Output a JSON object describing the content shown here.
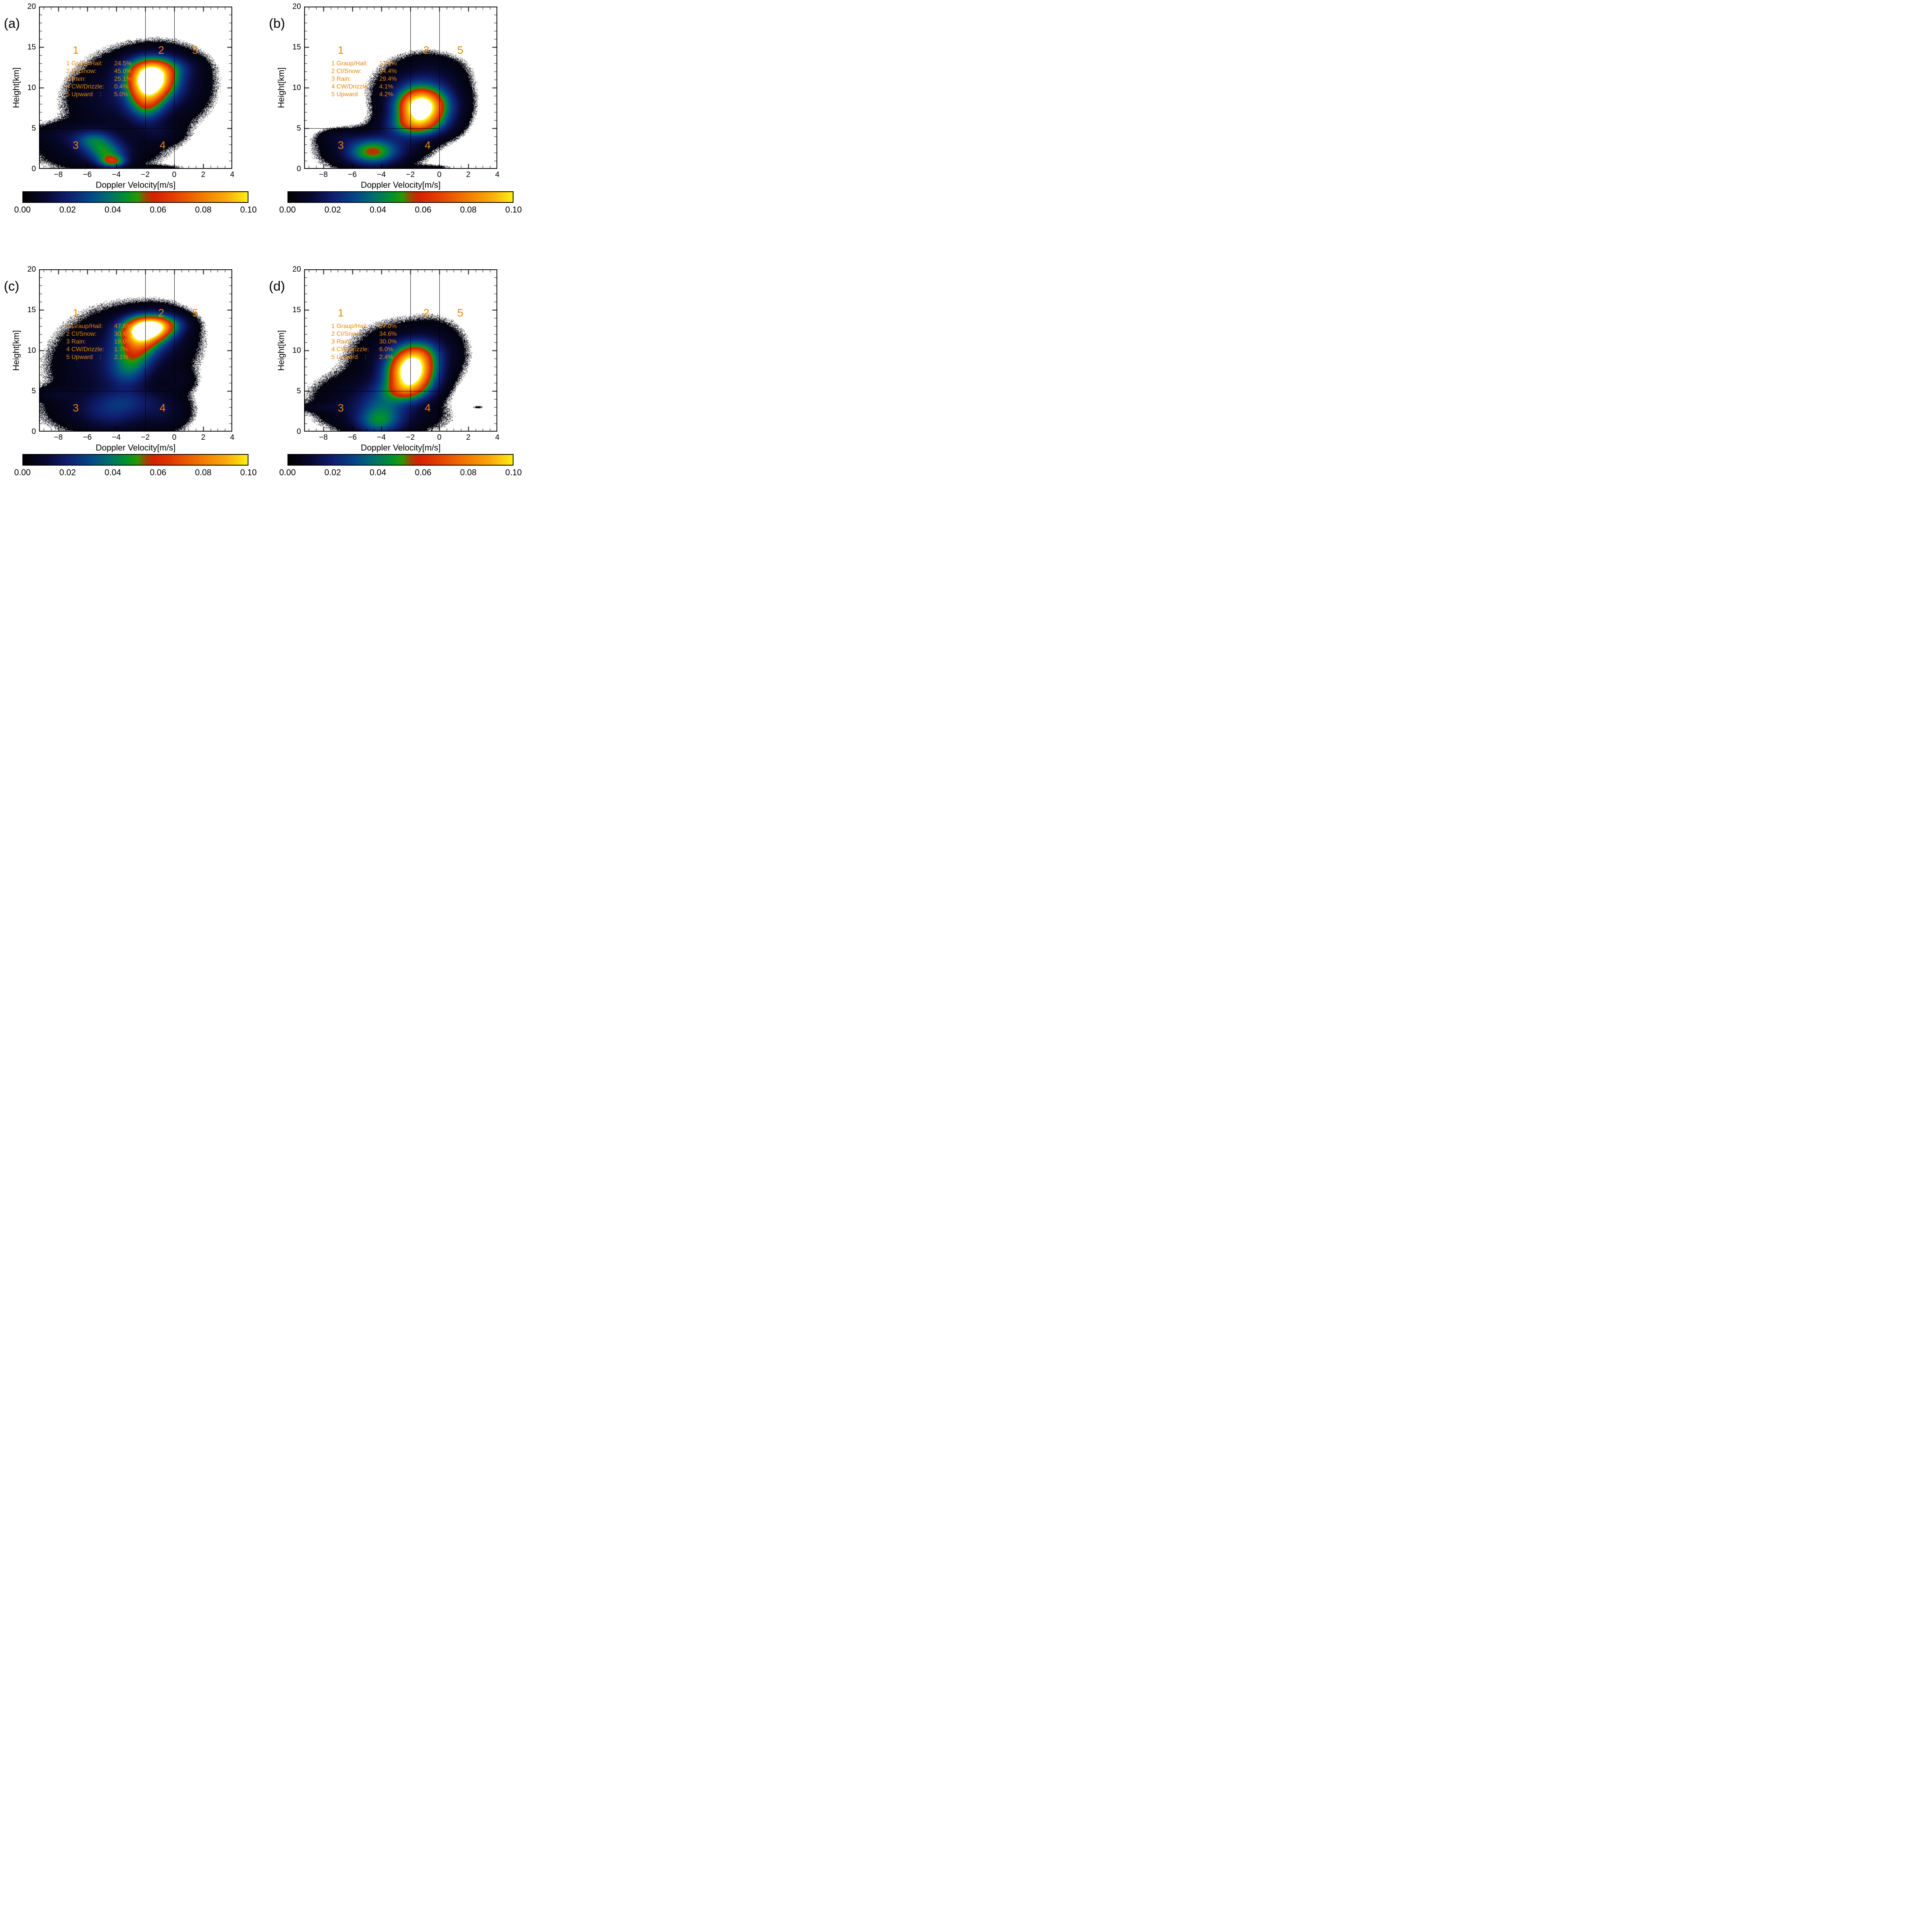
{
  "page": {
    "background": "#ffffff",
    "annotation_color": "#E8860D",
    "axis_color": "#000000"
  },
  "chart_data": [
    {
      "type": "heatmap",
      "panel_label": "(a)",
      "xlabel": "Doppler Velocity[m/s]",
      "ylabel": "Height[km]",
      "xlim": [
        -9.33,
        4
      ],
      "ylim": [
        0,
        20
      ],
      "xtick_values": [
        -8,
        -6,
        -4,
        -2,
        0,
        2,
        4
      ],
      "xtick_labels": [
        "−8",
        "−6",
        "−4",
        "−2",
        "0",
        "2",
        "4"
      ],
      "ytick_values": [
        0,
        5,
        10,
        15,
        20
      ],
      "ytick_labels": [
        "0",
        "5",
        "10",
        "15",
        "20"
      ],
      "colorbar": {
        "min": 0.0,
        "max": 0.1,
        "tick_labels": [
          "0.00",
          "0.02",
          "0.04",
          "0.06",
          "0.08",
          "0.10"
        ]
      },
      "reference_lines": {
        "vertical_x": [
          -2,
          0
        ],
        "horizontal_y": 5,
        "horizontal_x_range": [
          -9.33,
          0
        ]
      },
      "region_labels": [
        {
          "text": "1",
          "x": -6.8,
          "y": 14.6
        },
        {
          "text": "2",
          "x": -0.9,
          "y": 14.6
        },
        {
          "text": "5",
          "x": 1.45,
          "y": 14.6
        },
        {
          "text": "3",
          "x": -6.8,
          "y": 2.9
        },
        {
          "text": "4",
          "x": -0.8,
          "y": 2.9
        }
      ],
      "legend_pos": {
        "x": -7.45,
        "y": 13.45
      },
      "legend": [
        {
          "label": "1 Graup/Hail:",
          "value": "24.5%"
        },
        {
          "label": "2 CI/Snow:",
          "value": "45.0%"
        },
        {
          "label": "3 Rain:",
          "value": "25.1%"
        },
        {
          "label": "4 CW/Drizzle:",
          "value": "0.4%"
        },
        {
          "label": "5 Upward    :",
          "value": "5.0%"
        }
      ],
      "density_gaussians": [
        {
          "x": -2.0,
          "y": 10.5,
          "sx": 2.6,
          "sy": 2.9,
          "a": 0.01
        },
        {
          "x": -4.6,
          "y": 8.0,
          "sx": 1.9,
          "sy": 2.4,
          "a": 0.007
        },
        {
          "x": 0.3,
          "y": 10.0,
          "sx": 1.3,
          "sy": 2.8,
          "a": 0.006
        },
        {
          "x": -5.2,
          "y": 2.4,
          "sx": 2.6,
          "sy": 1.7,
          "a": 0.011
        },
        {
          "x": -7.8,
          "y": 4.3,
          "sx": 1.3,
          "sy": 0.9,
          "a": 0.006
        },
        {
          "x": -0.9,
          "y": 4.4,
          "sx": 1.0,
          "sy": 0.9,
          "a": 0.007
        },
        {
          "x": -1.6,
          "y": 11.0,
          "sx": 1.05,
          "sy": 1.5,
          "a": 0.115
        },
        {
          "x": -1.9,
          "y": 8.3,
          "sx": 0.85,
          "sy": 1.6,
          "a": 0.045
        },
        {
          "x": -1.2,
          "y": 12.5,
          "sx": 1.4,
          "sy": 0.9,
          "a": 0.025
        },
        {
          "x": -5.5,
          "y": 3.5,
          "sx": 0.9,
          "sy": 0.8,
          "a": 0.028
        },
        {
          "x": -4.7,
          "y": 2.0,
          "sx": 0.85,
          "sy": 0.8,
          "a": 0.032
        },
        {
          "x": -4.25,
          "y": 0.9,
          "sx": 0.6,
          "sy": 0.5,
          "a": 0.045
        },
        {
          "x": -0.9,
          "y": 0.1,
          "sx": 1.1,
          "sy": 0.25,
          "a": 0.004
        }
      ]
    },
    {
      "type": "heatmap",
      "panel_label": "(b)",
      "xlabel": "Doppler Velocity[m/s]",
      "ylabel": "Height[km]",
      "xlim": [
        -9.33,
        4
      ],
      "ylim": [
        0,
        20
      ],
      "xtick_values": [
        -8,
        -6,
        -4,
        -2,
        0,
        2,
        4
      ],
      "xtick_labels": [
        "−8",
        "−6",
        "−4",
        "−2",
        "0",
        "2",
        "4"
      ],
      "ytick_values": [
        0,
        5,
        10,
        15,
        20
      ],
      "ytick_labels": [
        "0",
        "5",
        "10",
        "15",
        "20"
      ],
      "colorbar": {
        "min": 0.0,
        "max": 0.1,
        "tick_labels": [
          "0.00",
          "0.02",
          "0.04",
          "0.06",
          "0.08",
          "0.10"
        ]
      },
      "reference_lines": {
        "vertical_x": [
          -2,
          0
        ],
        "horizontal_y": 5,
        "horizontal_x_range": [
          -9.33,
          0
        ]
      },
      "region_labels": [
        {
          "text": "1",
          "x": -6.8,
          "y": 14.6
        },
        {
          "text": "2",
          "x": -0.9,
          "y": 14.6
        },
        {
          "text": "5",
          "x": 1.45,
          "y": 14.6
        },
        {
          "text": "3",
          "x": -6.8,
          "y": 2.9
        },
        {
          "text": "4",
          "x": -0.8,
          "y": 2.9
        }
      ],
      "legend_pos": {
        "x": -7.45,
        "y": 13.45
      },
      "legend": [
        {
          "label": "1 Graup/Hail:",
          "value": "17.9%"
        },
        {
          "label": "2 CI/Snow:",
          "value": "44.4%"
        },
        {
          "label": "3 Rain:",
          "value": "29.4%"
        },
        {
          "label": "4 CW/Drizzle:",
          "value": "4.1%"
        },
        {
          "label": "5 Upward    :",
          "value": "4.2%"
        }
      ],
      "density_gaussians": [
        {
          "x": -1.5,
          "y": 9.5,
          "sx": 2.0,
          "sy": 2.5,
          "a": 0.009
        },
        {
          "x": -0.5,
          "y": 12.0,
          "sx": 1.5,
          "sy": 1.5,
          "a": 0.005
        },
        {
          "x": -4.9,
          "y": 2.2,
          "sx": 2.1,
          "sy": 1.5,
          "a": 0.011
        },
        {
          "x": -2.6,
          "y": 3.6,
          "sx": 1.4,
          "sy": 1.4,
          "a": 0.007
        },
        {
          "x": 0.7,
          "y": 7.5,
          "sx": 1.0,
          "sy": 2.2,
          "a": 0.006
        },
        {
          "x": -6.9,
          "y": 3.9,
          "sx": 1.0,
          "sy": 0.7,
          "a": 0.006
        },
        {
          "x": -1.25,
          "y": 7.6,
          "sx": 1.1,
          "sy": 1.6,
          "a": 0.12
        },
        {
          "x": -1.7,
          "y": 5.4,
          "sx": 1.2,
          "sy": 0.9,
          "a": 0.035
        },
        {
          "x": -4.6,
          "y": 2.1,
          "sx": 1.1,
          "sy": 1.05,
          "a": 0.045
        },
        {
          "x": -0.5,
          "y": 0.15,
          "sx": 1.0,
          "sy": 0.25,
          "a": 0.004
        }
      ]
    },
    {
      "type": "heatmap",
      "panel_label": "(c)",
      "xlabel": "Doppler Velocity[m/s]",
      "ylabel": "Height[km]",
      "xlim": [
        -9.33,
        4
      ],
      "ylim": [
        0,
        20
      ],
      "xtick_values": [
        -8,
        -6,
        -4,
        -2,
        0,
        2,
        4
      ],
      "xtick_labels": [
        "−8",
        "−6",
        "−4",
        "−2",
        "0",
        "2",
        "4"
      ],
      "ytick_values": [
        0,
        5,
        10,
        15,
        20
      ],
      "ytick_labels": [
        "0",
        "5",
        "10",
        "15",
        "20"
      ],
      "colorbar": {
        "min": 0.0,
        "max": 0.1,
        "tick_labels": [
          "0.00",
          "0.02",
          "0.04",
          "0.06",
          "0.08",
          "0.10"
        ]
      },
      "reference_lines": {
        "vertical_x": [
          -2,
          0
        ],
        "horizontal_y": 5,
        "horizontal_x_range": [
          -9.33,
          0
        ]
      },
      "region_labels": [
        {
          "text": "1",
          "x": -6.8,
          "y": 14.6
        },
        {
          "text": "2",
          "x": -0.9,
          "y": 14.6
        },
        {
          "text": "5",
          "x": 1.45,
          "y": 14.6
        },
        {
          "text": "3",
          "x": -6.8,
          "y": 2.9
        },
        {
          "text": "4",
          "x": -0.8,
          "y": 2.9
        }
      ],
      "legend_pos": {
        "x": -7.45,
        "y": 13.45
      },
      "legend": [
        {
          "label": "1 Graup/Hail:",
          "value": "47.6%"
        },
        {
          "label": "2 CI/Snow:",
          "value": "30.6%"
        },
        {
          "label": "3 Rain:",
          "value": "18.0%"
        },
        {
          "label": "4 CW/Drizzle:",
          "value": "1.7%"
        },
        {
          "label": "5 Upward    :",
          "value": "2.1%"
        }
      ],
      "density_gaussians": [
        {
          "x": -3.0,
          "y": 10.8,
          "sx": 2.7,
          "sy": 3.0,
          "a": 0.01
        },
        {
          "x": -5.6,
          "y": 7.5,
          "sx": 2.0,
          "sy": 2.6,
          "a": 0.007
        },
        {
          "x": -4.6,
          "y": 2.5,
          "sx": 2.7,
          "sy": 1.8,
          "a": 0.01
        },
        {
          "x": -0.6,
          "y": 11.5,
          "sx": 1.2,
          "sy": 2.3,
          "a": 0.006
        },
        {
          "x": -0.6,
          "y": 2.5,
          "sx": 1.1,
          "sy": 1.6,
          "a": 0.008
        },
        {
          "x": 0.4,
          "y": 6.3,
          "sx": 0.8,
          "sy": 1.0,
          "a": 0.005
        },
        {
          "x": -8.3,
          "y": 4.6,
          "sx": 1.0,
          "sy": 0.6,
          "a": 0.005
        },
        {
          "x": -1.95,
          "y": 12.6,
          "sx": 1.05,
          "sy": 1.05,
          "a": 0.11
        },
        {
          "x": -2.5,
          "y": 10.9,
          "sx": 0.95,
          "sy": 1.2,
          "a": 0.045
        },
        {
          "x": -2.95,
          "y": 8.9,
          "sx": 0.95,
          "sy": 1.3,
          "a": 0.028
        },
        {
          "x": -3.25,
          "y": 6.9,
          "sx": 0.95,
          "sy": 1.2,
          "a": 0.016
        },
        {
          "x": -0.9,
          "y": 13.2,
          "sx": 1.0,
          "sy": 0.8,
          "a": 0.035
        },
        {
          "x": -4.2,
          "y": 2.6,
          "sx": 1.4,
          "sy": 1.6,
          "a": 0.011
        },
        {
          "x": -2.9,
          "y": 3.9,
          "sx": 1.3,
          "sy": 1.0,
          "a": 0.009
        }
      ]
    },
    {
      "type": "heatmap",
      "panel_label": "(d)",
      "xlabel": "Doppler Velocity[m/s]",
      "ylabel": "Height[km]",
      "xlim": [
        -9.33,
        4
      ],
      "ylim": [
        0,
        20
      ],
      "xtick_values": [
        -8,
        -6,
        -4,
        -2,
        0,
        2,
        4
      ],
      "xtick_labels": [
        "−8",
        "−6",
        "−4",
        "−2",
        "0",
        "2",
        "4"
      ],
      "ytick_values": [
        0,
        5,
        10,
        15,
        20
      ],
      "ytick_labels": [
        "0",
        "5",
        "10",
        "15",
        "20"
      ],
      "colorbar": {
        "min": 0.0,
        "max": 0.1,
        "tick_labels": [
          "0.00",
          "0.02",
          "0.04",
          "0.06",
          "0.08",
          "0.10"
        ]
      },
      "reference_lines": {
        "vertical_x": [
          -2,
          0
        ],
        "horizontal_y": 5,
        "horizontal_x_range": [
          -9.33,
          0
        ]
      },
      "region_labels": [
        {
          "text": "1",
          "x": -6.8,
          "y": 14.6
        },
        {
          "text": "2",
          "x": -0.9,
          "y": 14.6
        },
        {
          "text": "5",
          "x": 1.45,
          "y": 14.6
        },
        {
          "text": "3",
          "x": -6.8,
          "y": 2.9
        },
        {
          "text": "4",
          "x": -0.8,
          "y": 2.9
        }
      ],
      "legend_pos": {
        "x": -7.45,
        "y": 13.45
      },
      "legend": [
        {
          "label": "1 Graup/Hail:",
          "value": "27.0%"
        },
        {
          "label": "2 CI/Snow:",
          "value": "34.6%"
        },
        {
          "label": "3 Rain:",
          "value": "30.0%"
        },
        {
          "label": "4 CW/Drizzle:",
          "value": "6.0%"
        },
        {
          "label": "5 Upward    :",
          "value": "2.4%"
        }
      ],
      "density_gaussians": [
        {
          "x": -2.6,
          "y": 9.2,
          "sx": 2.3,
          "sy": 2.7,
          "a": 0.009
        },
        {
          "x": -5.2,
          "y": 4.2,
          "sx": 2.3,
          "sy": 1.9,
          "a": 0.009
        },
        {
          "x": -3.6,
          "y": 1.8,
          "sx": 2.5,
          "sy": 1.4,
          "a": 0.009
        },
        {
          "x": -0.3,
          "y": 10.2,
          "sx": 1.3,
          "sy": 2.3,
          "a": 0.006
        },
        {
          "x": -8.1,
          "y": 3.0,
          "sx": 0.9,
          "sy": 0.35,
          "a": 0.005
        },
        {
          "x": -1.95,
          "y": 7.4,
          "sx": 1.05,
          "sy": 1.65,
          "a": 0.115
        },
        {
          "x": -2.4,
          "y": 5.1,
          "sx": 1.05,
          "sy": 1.0,
          "a": 0.035
        },
        {
          "x": -1.5,
          "y": 9.6,
          "sx": 0.95,
          "sy": 1.1,
          "a": 0.03
        },
        {
          "x": -3.9,
          "y": 2.6,
          "sx": 1.05,
          "sy": 1.7,
          "a": 0.022
        },
        {
          "x": -4.3,
          "y": 1.0,
          "sx": 0.95,
          "sy": 1.0,
          "a": 0.02
        },
        {
          "x": 2.7,
          "y": 3.0,
          "sx": 0.25,
          "sy": 0.12,
          "a": 0.004
        }
      ]
    }
  ]
}
